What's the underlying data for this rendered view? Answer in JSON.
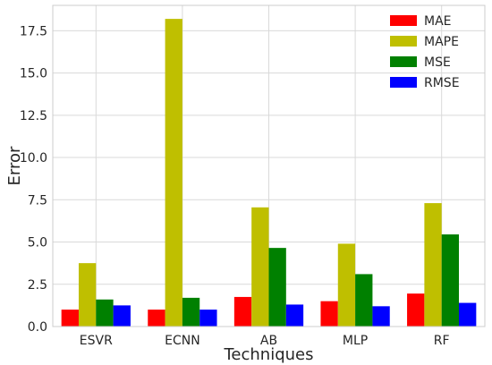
{
  "chart_data": {
    "type": "bar",
    "xlabel": "Techniques",
    "ylabel": "Error",
    "categories": [
      "ESVR",
      "ECNN",
      "AB",
      "MLP",
      "RF"
    ],
    "ylim": [
      0,
      19.0
    ],
    "yticks": [
      "0.0",
      "2.5",
      "5.0",
      "7.5",
      "10.0",
      "12.5",
      "15.0",
      "17.5"
    ],
    "grid": true,
    "legend_position": "top-right",
    "series": [
      {
        "name": "MAE",
        "color": "#ff0000",
        "values": [
          1.0,
          1.0,
          1.75,
          1.5,
          1.95
        ]
      },
      {
        "name": "MAPE",
        "color": "#bfbf00",
        "values": [
          3.75,
          18.2,
          7.05,
          4.9,
          7.3
        ]
      },
      {
        "name": "MSE",
        "color": "#008000",
        "values": [
          1.6,
          1.7,
          4.65,
          3.1,
          5.45
        ]
      },
      {
        "name": "RMSE",
        "color": "#0000ff",
        "values": [
          1.25,
          1.0,
          1.3,
          1.2,
          1.4
        ]
      }
    ]
  }
}
